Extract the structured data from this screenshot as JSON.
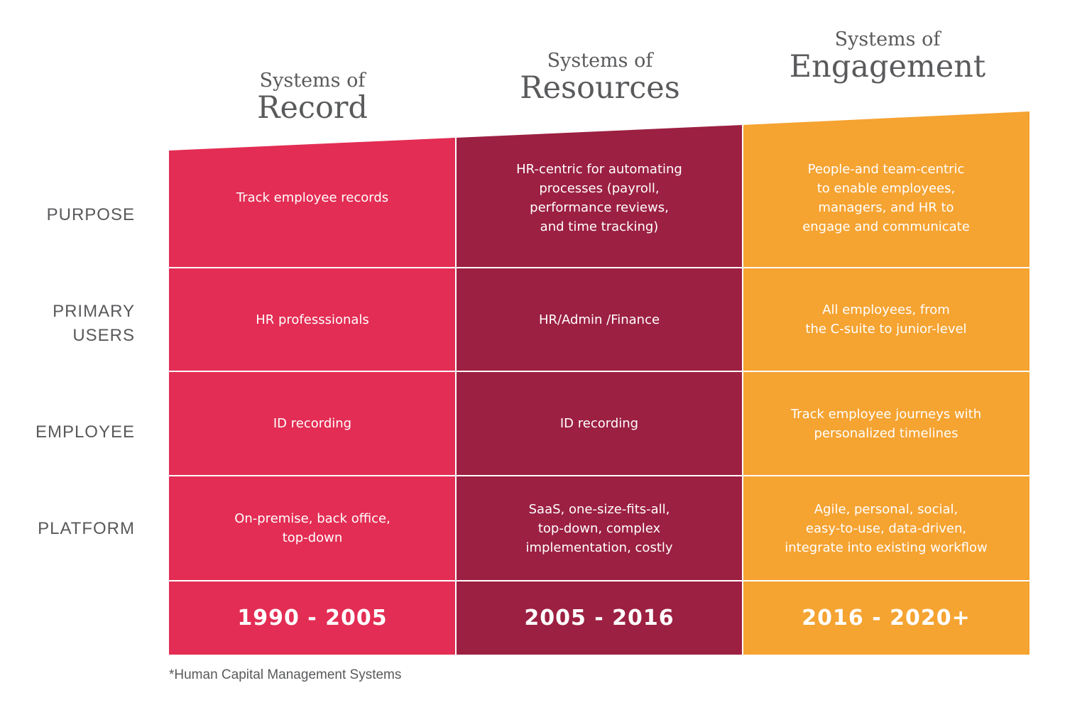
{
  "colors": {
    "record": "#e32d54",
    "resources": "#9c2042",
    "engagement": "#f5a331",
    "divider": "#ffffff"
  },
  "columns": [
    {
      "sub": "Systems of",
      "main": "Record"
    },
    {
      "sub": "Systems of",
      "main": "Resources"
    },
    {
      "sub": "Systems of",
      "main": "Engagement"
    }
  ],
  "row_labels": [
    "PURPOSE",
    "PRIMARY\nUSERS",
    "EMPLOYEE",
    "PLATFORM"
  ],
  "cells": [
    [
      "Track employee records",
      "HR-centric for automating\nprocesses (payroll,\nperformance reviews,\nand time tracking)",
      "People-and team-centric\nto enable employees,\nmanagers, and HR to\nengage and communicate"
    ],
    [
      "HR professsionals",
      "HR/Admin /Finance",
      "All employees, from\nthe C-suite to junior-level"
    ],
    [
      "ID recording",
      "ID recording",
      "Track employee journeys with\npersonalized timelines"
    ],
    [
      "On-premise, back office,\ntop-down",
      "SaaS, one-size-fits-all,\ntop-down, complex\nimplementation, costly",
      "Agile, personal, social,\neasy-to-use, data-driven,\nintegrate into existing workflow"
    ]
  ],
  "years": [
    "1990 - 2005",
    "2005 - 2016",
    "2016 - 2020+"
  ],
  "footnote": "*Human Capital Management Systems"
}
